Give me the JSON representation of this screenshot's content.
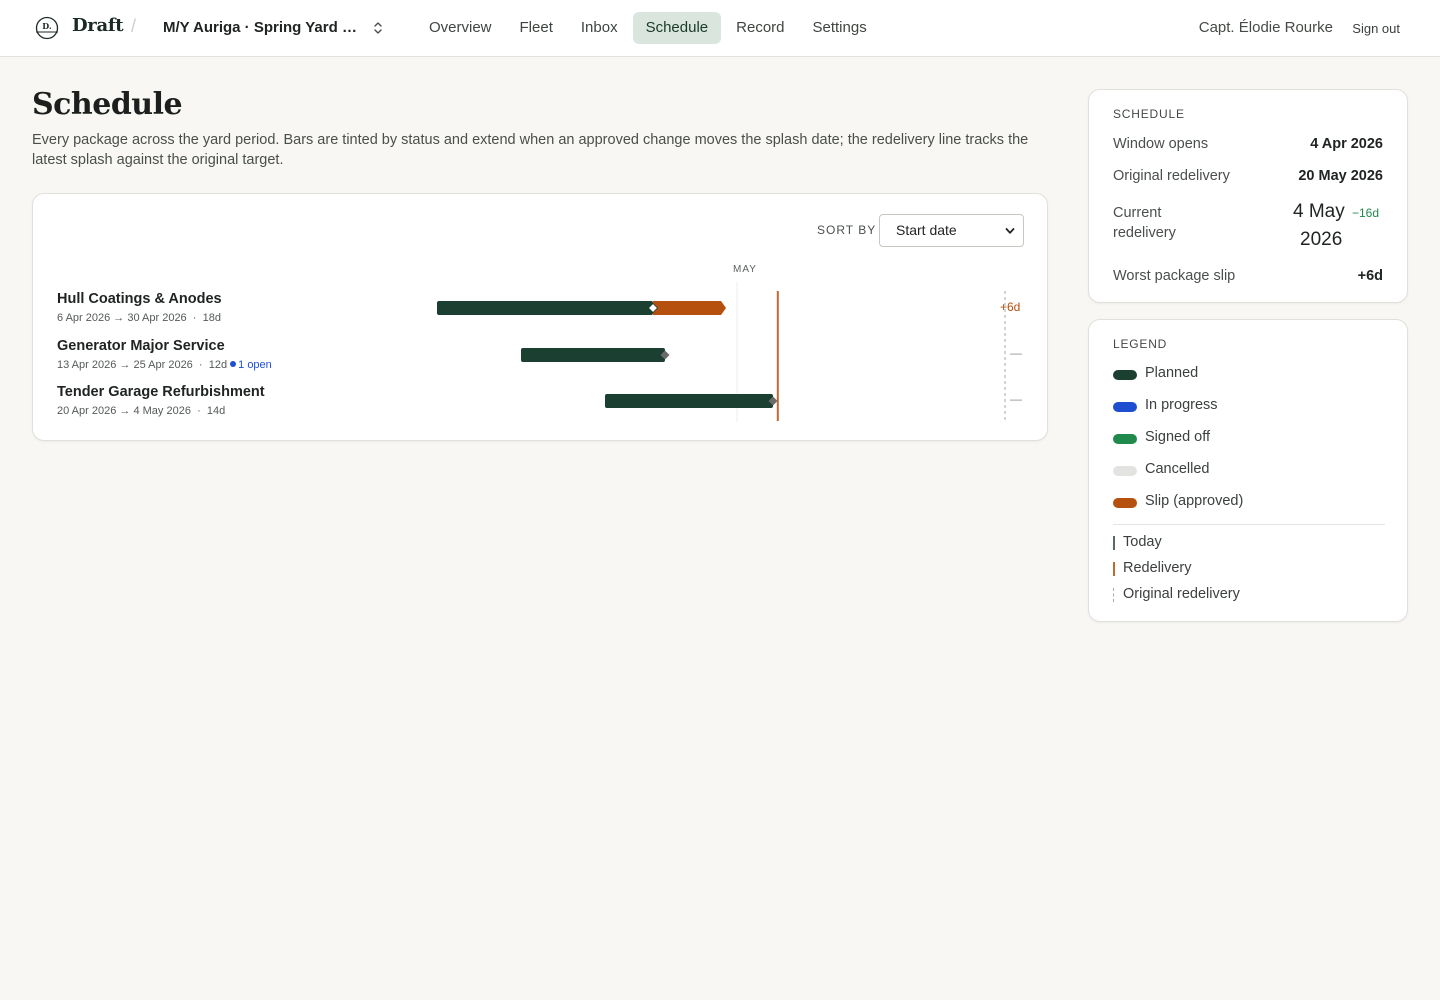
{
  "header": {
    "brand": "Draft",
    "brand_mark": "D.",
    "project": "M/Y Auriga · Spring Yard P...",
    "nav": [
      "Overview",
      "Fleet",
      "Inbox",
      "Schedule",
      "Record",
      "Settings"
    ],
    "active_nav": "Schedule",
    "user": "Capt. Élodie Rourke",
    "signout": "Sign out"
  },
  "page": {
    "title": "Schedule",
    "description": "Every package across the yard period. Bars are tinted by status and extend when an approved change moves the splash date; the redelivery line tracks the latest splash against the original target."
  },
  "gantt": {
    "sort_label": "SORT BY",
    "sort_value": "Start date",
    "month_label": "MAY",
    "colors": {
      "planned": "#1b3f30",
      "slip": "#b5500e",
      "redelivery": "#c06a2e",
      "original": "#a9a9a9"
    },
    "rows": [
      {
        "name": "Hull Coatings & Anodes",
        "start": "6 Apr 2026",
        "end": "30 Apr 2026",
        "duration": "18d",
        "start_day": 6,
        "planned_end_day": 24,
        "slip_end_day": 30,
        "slip": "+6d",
        "open_items": ""
      },
      {
        "name": "Generator Major Service",
        "start": "13 Apr 2026",
        "end": "25 Apr 2026",
        "duration": "12d",
        "start_day": 13,
        "planned_end_day": 25,
        "slip_end_day": null,
        "slip": "—",
        "open_items": "1 open"
      },
      {
        "name": "Tender Garage Refurbishment",
        "start": "20 Apr 2026",
        "end": "4 May 2026",
        "duration": "14d",
        "start_day": 20,
        "planned_end_day": 34,
        "slip_end_day": null,
        "slip": "—",
        "open_items": ""
      }
    ]
  },
  "schedule": {
    "heading": "SCHEDULE",
    "window_opens_label": "Window opens",
    "window_opens": "4 Apr 2026",
    "original_redelivery_label": "Original redelivery",
    "original_redelivery": "20 May 2026",
    "current_redelivery_label_1": "Current",
    "current_redelivery_label_2": "redelivery",
    "current_redelivery_day": "4 May",
    "current_redelivery_year": "2026",
    "current_redelivery_delta": "−16d",
    "worst_slip_label": "Worst package slip",
    "worst_slip": "+6d"
  },
  "legend": {
    "heading": "LEGEND",
    "items": [
      {
        "label": "Planned",
        "color": "#1b3f30"
      },
      {
        "label": "In progress",
        "color": "#1f4fd1"
      },
      {
        "label": "Signed off",
        "color": "#1f8a4c"
      },
      {
        "label": "Cancelled",
        "color": "#e3e3e1"
      },
      {
        "label": "Slip (approved)",
        "color": "#b5500e"
      }
    ],
    "lines": [
      {
        "label": "Today",
        "color": "#5a6a62",
        "style": "solid"
      },
      {
        "label": "Redelivery",
        "color": "#c06a2e",
        "style": "solid"
      },
      {
        "label": "Original redelivery",
        "color": "#a9a9a9",
        "style": "dashed"
      }
    ]
  }
}
